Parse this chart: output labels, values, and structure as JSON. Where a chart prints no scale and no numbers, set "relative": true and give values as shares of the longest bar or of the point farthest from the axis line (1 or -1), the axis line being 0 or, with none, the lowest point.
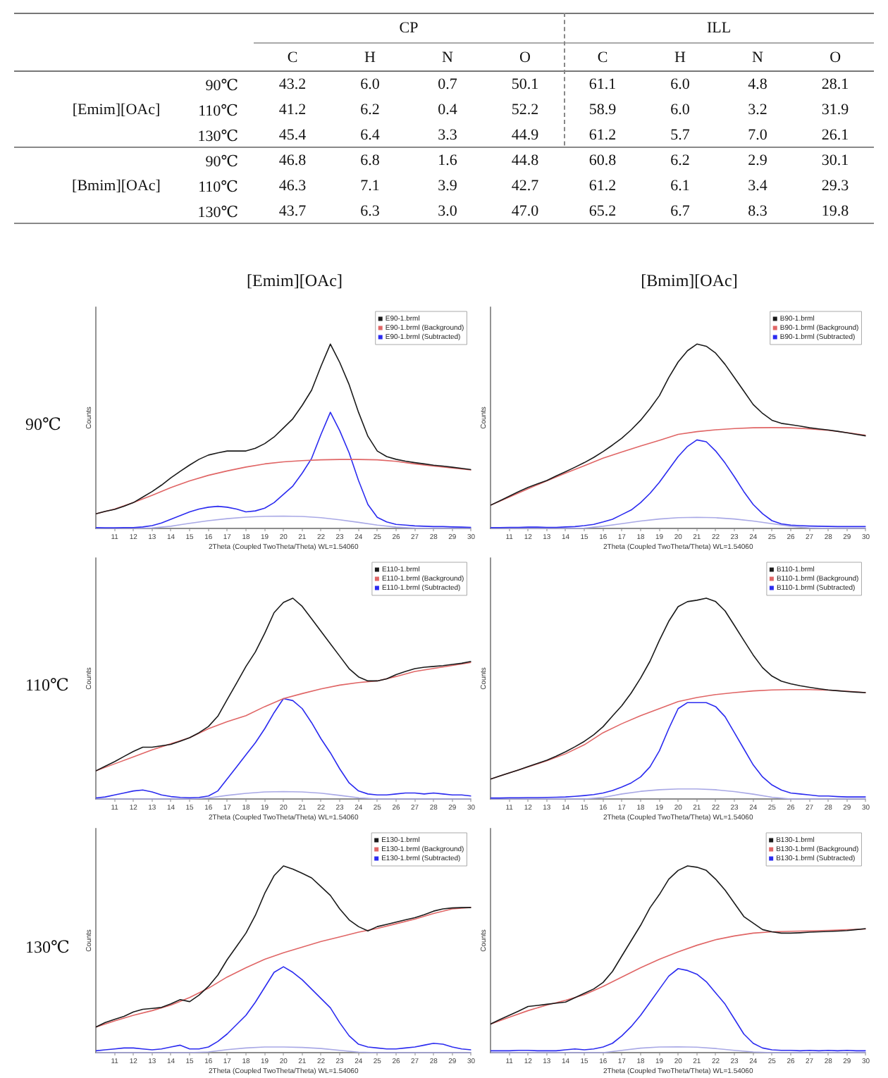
{
  "chart_data": [
    {
      "type": "heatmap",
      "ylabel": "[Emim][OAc]",
      "annotations": [
        "CP",
        "ILL"
      ],
      "categories": [
        "C",
        "H",
        "N",
        "O",
        "C",
        "H",
        "N",
        "O"
      ],
      "y_categories": [
        "90℃",
        "110℃",
        "130℃"
      ],
      "cells": [
        [
          43.2,
          6.0,
          0.7,
          50.1,
          61.1,
          6.0,
          4.8,
          28.1
        ],
        [
          41.2,
          6.2,
          0.4,
          52.2,
          58.9,
          6.0,
          3.2,
          31.9
        ],
        [
          45.4,
          6.4,
          3.3,
          44.9,
          61.2,
          5.7,
          7.0,
          26.1
        ]
      ],
      "cell_labels": [
        [
          "43.2",
          "6.0",
          "0.7",
          "50.1",
          "61.1",
          "6.0",
          "4.8",
          "28.1"
        ],
        [
          "41.2",
          "6.2",
          "0.4",
          "52.2",
          "58.9",
          "6.0",
          "3.2",
          "31.9"
        ],
        [
          "45.4",
          "6.4",
          "3.3",
          "44.9",
          "61.2",
          "5.7",
          "7.0",
          "26.1"
        ]
      ],
      "data_labels": true
    },
    {
      "type": "heatmap",
      "ylabel": "[Bmim][OAc]",
      "categories": [
        null,
        null,
        null,
        null,
        null,
        null,
        null,
        null
      ],
      "y_categories": [
        "90℃",
        "110℃",
        "130℃"
      ],
      "cells": [
        [
          46.8,
          6.8,
          1.6,
          44.8,
          60.8,
          6.2,
          2.9,
          30.1
        ],
        [
          46.3,
          7.1,
          3.9,
          42.7,
          61.2,
          6.1,
          3.4,
          29.3
        ],
        [
          43.7,
          6.3,
          3.0,
          47.0,
          65.2,
          6.7,
          8.3,
          19.8
        ]
      ],
      "cell_labels": [
        [
          "46.8",
          "6.8",
          "1.6",
          "44.8",
          "60.8",
          "6.2",
          "2.9",
          "30.1"
        ],
        [
          "46.3",
          "7.1",
          "3.9",
          "42.7",
          "61.2",
          "6.1",
          "3.4",
          "29.3"
        ],
        [
          "43.7",
          "6.3",
          "3.0",
          "47.0",
          "65.2",
          "6.7",
          "8.3",
          "19.8"
        ]
      ],
      "data_labels": true
    },
    {
      "type": "line",
      "title": "[Emim][OAc]",
      "annotations": [
        "90℃"
      ],
      "xlabel": "2Theta (Coupled TwoTheta/Theta) WL=1.54060",
      "ylabel": "Counts",
      "relative": true,
      "xlim": [
        10,
        30
      ],
      "xticks": [
        11,
        12,
        13,
        14,
        15,
        16,
        17,
        18,
        19,
        20,
        21,
        22,
        23,
        24,
        25,
        26,
        27,
        28,
        29,
        30
      ],
      "legend": "top right",
      "marker": "none",
      "x": [
        10,
        10.5,
        11,
        11.5,
        12,
        12.5,
        13,
        13.5,
        14,
        14.5,
        15,
        15.5,
        16,
        16.5,
        17,
        17.5,
        18,
        18.5,
        19,
        19.5,
        20,
        20.5,
        21,
        21.5,
        22,
        22.5,
        23,
        23.5,
        24,
        24.5,
        25,
        25.5,
        26,
        26.5,
        27,
        27.5,
        28,
        28.5,
        29,
        29.5,
        30
      ],
      "series": [
        {
          "name": "E90-1.brml",
          "color": "#1a1a1a",
          "values": [
            0.079,
            0.093,
            0.103,
            0.12,
            0.14,
            0.17,
            0.2,
            0.235,
            0.275,
            0.31,
            0.344,
            0.375,
            0.398,
            0.41,
            0.42,
            0.42,
            0.42,
            0.435,
            0.46,
            0.496,
            0.545,
            0.595,
            0.668,
            0.75,
            0.88,
            1,
            0.9,
            0.78,
            0.63,
            0.5,
            0.42,
            0.39,
            0.375,
            0.365,
            0.357,
            0.35,
            0.343,
            0.338,
            0.332,
            0.326,
            0.319
          ]
        },
        {
          "name": "E90-1.brml (Background)",
          "color": "#e06666",
          "x": [
            10,
            11,
            12,
            13,
            14,
            15,
            16,
            17,
            18,
            19,
            20,
            21,
            22,
            23,
            24,
            25,
            26,
            27,
            28,
            29,
            30
          ],
          "values": [
            0.079,
            0.105,
            0.14,
            0.18,
            0.222,
            0.258,
            0.288,
            0.312,
            0.333,
            0.35,
            0.361,
            0.368,
            0.372,
            0.374,
            0.374,
            0.372,
            0.364,
            0.35,
            0.338,
            0.328,
            0.317
          ]
        },
        {
          "name": "E90-1.brml (Subtracted)",
          "color": "#2b2bf0",
          "values": [
            0.005,
            0.004,
            0.004,
            0.005,
            0.005,
            0.008,
            0.015,
            0.03,
            0.05,
            0.07,
            0.09,
            0.105,
            0.115,
            0.12,
            0.115,
            0.105,
            0.09,
            0.095,
            0.11,
            0.14,
            0.185,
            0.23,
            0.3,
            0.38,
            0.51,
            0.63,
            0.53,
            0.41,
            0.26,
            0.13,
            0.06,
            0.035,
            0.022,
            0.018,
            0.014,
            0.012,
            0.01,
            0.01,
            0.008,
            0.007,
            0.006
          ]
        },
        {
          "color": "#a9a9e6",
          "x": [
            10,
            11,
            12,
            13,
            14,
            15,
            16,
            17,
            18,
            19,
            20,
            21,
            22,
            23,
            24,
            25,
            26,
            27,
            28,
            29,
            30
          ],
          "values": [
            0,
            0,
            0,
            0.003,
            0.012,
            0.028,
            0.042,
            0.053,
            0.061,
            0.066,
            0.067,
            0.065,
            0.058,
            0.047,
            0.033,
            0.018,
            0.007,
            0.002,
            0,
            0,
            0
          ]
        }
      ]
    },
    {
      "type": "line",
      "title": "[Bmim][OAc]",
      "xlabel": "2Theta (Coupled TwoTheta/Theta) WL=1.54060",
      "ylabel": "Counts",
      "relative": true,
      "xlim": [
        10,
        30
      ],
      "xticks": [
        11,
        12,
        13,
        14,
        15,
        16,
        17,
        18,
        19,
        20,
        21,
        22,
        23,
        24,
        25,
        26,
        27,
        28,
        29,
        30
      ],
      "legend": "top right",
      "marker": "none",
      "x": [
        10,
        10.5,
        11,
        11.5,
        12,
        12.5,
        13,
        13.5,
        14,
        14.5,
        15,
        15.5,
        16,
        16.5,
        17,
        17.5,
        18,
        18.5,
        19,
        19.5,
        20,
        20.5,
        21,
        21.5,
        22,
        22.5,
        23,
        23.5,
        24,
        24.5,
        25,
        25.5,
        26,
        26.5,
        27,
        27.5,
        28,
        28.5,
        29,
        29.5,
        30
      ],
      "series": [
        {
          "name": "B90-1.brml",
          "color": "#1a1a1a",
          "values": [
            0.126,
            0.15,
            0.175,
            0.2,
            0.223,
            0.242,
            0.26,
            0.285,
            0.308,
            0.332,
            0.357,
            0.385,
            0.417,
            0.452,
            0.49,
            0.535,
            0.587,
            0.65,
            0.72,
            0.818,
            0.903,
            0.964,
            1,
            0.988,
            0.951,
            0.89,
            0.818,
            0.745,
            0.672,
            0.624,
            0.587,
            0.57,
            0.563,
            0.555,
            0.546,
            0.54,
            0.534,
            0.527,
            0.519,
            0.51,
            0.502
          ]
        },
        {
          "name": "B90-1.brml (Background)",
          "color": "#e06666",
          "x": [
            10,
            11,
            12,
            13,
            14,
            15,
            16,
            17,
            18,
            19,
            20,
            21,
            22,
            23,
            24,
            25,
            26,
            27,
            28,
            29,
            30
          ],
          "values": [
            0.126,
            0.17,
            0.215,
            0.258,
            0.3,
            0.34,
            0.381,
            0.415,
            0.447,
            0.478,
            0.51,
            0.525,
            0.535,
            0.542,
            0.546,
            0.547,
            0.546,
            0.54,
            0.532,
            0.52,
            0.505
          ]
        },
        {
          "name": "B90-1.brml (Subtracted)",
          "color": "#2b2bf0",
          "values": [
            0.005,
            0.005,
            0.006,
            0.006,
            0.007,
            0.007,
            0.006,
            0.006,
            0.008,
            0.01,
            0.015,
            0.022,
            0.035,
            0.05,
            0.075,
            0.1,
            0.14,
            0.19,
            0.25,
            0.32,
            0.39,
            0.445,
            0.48,
            0.47,
            0.42,
            0.355,
            0.28,
            0.2,
            0.13,
            0.08,
            0.042,
            0.025,
            0.018,
            0.015,
            0.013,
            0.012,
            0.011,
            0.01,
            0.01,
            0.01,
            0.01
          ]
        },
        {
          "color": "#a9a9e6",
          "x": [
            10,
            11,
            12,
            13,
            14,
            15,
            16,
            17,
            18,
            19,
            20,
            21,
            22,
            23,
            24,
            25,
            26,
            27,
            28,
            29,
            30
          ],
          "values": [
            0,
            0,
            0,
            0,
            0,
            0.002,
            0.012,
            0.026,
            0.04,
            0.051,
            0.058,
            0.06,
            0.058,
            0.051,
            0.04,
            0.026,
            0.012,
            0.003,
            0,
            0,
            0
          ]
        }
      ]
    },
    {
      "type": "line",
      "annotations": [
        "110℃"
      ],
      "xlabel": "2Theta (Coupled TwoTheta/Theta) WL=1.54060",
      "ylabel": "Counts",
      "relative": true,
      "xlim": [
        10,
        30
      ],
      "xticks": [
        11,
        12,
        13,
        14,
        15,
        16,
        17,
        18,
        19,
        20,
        21,
        22,
        23,
        24,
        25,
        26,
        27,
        28,
        29,
        30
      ],
      "legend": "top right",
      "marker": "none",
      "x": [
        10,
        10.5,
        11,
        11.5,
        12,
        12.5,
        13,
        13.5,
        14,
        14.5,
        15,
        15.5,
        16,
        16.5,
        17,
        17.5,
        18,
        18.5,
        19,
        19.5,
        20,
        20.5,
        21,
        21.5,
        22,
        22.5,
        23,
        23.5,
        24,
        24.5,
        25,
        25.5,
        26,
        26.5,
        27,
        27.5,
        28,
        28.5,
        29,
        29.5,
        30
      ],
      "series": [
        {
          "name": "E110-1.brml",
          "color": "#1a1a1a",
          "values": [
            0.14,
            0.163,
            0.186,
            0.212,
            0.237,
            0.258,
            0.258,
            0.265,
            0.272,
            0.288,
            0.305,
            0.33,
            0.361,
            0.412,
            0.495,
            0.577,
            0.66,
            0.732,
            0.825,
            0.928,
            0.979,
            1,
            0.959,
            0.897,
            0.835,
            0.773,
            0.711,
            0.649,
            0.608,
            0.588,
            0.588,
            0.598,
            0.619,
            0.635,
            0.649,
            0.656,
            0.66,
            0.664,
            0.67,
            0.676,
            0.685
          ]
        },
        {
          "name": "E110-1.brml (Background)",
          "color": "#e06666",
          "x": [
            10,
            11,
            12,
            13,
            14,
            15,
            16,
            17,
            18,
            19,
            20,
            21,
            22,
            23,
            24,
            25,
            26,
            27,
            28,
            29,
            30
          ],
          "values": [
            0.14,
            0.175,
            0.21,
            0.245,
            0.275,
            0.305,
            0.35,
            0.385,
            0.415,
            0.46,
            0.5,
            0.525,
            0.548,
            0.567,
            0.58,
            0.588,
            0.61,
            0.635,
            0.65,
            0.665,
            0.68
          ]
        },
        {
          "name": "E110-1.brml (Subtracted)",
          "color": "#2b2bf0",
          "values": [
            0.005,
            0.01,
            0.02,
            0.03,
            0.04,
            0.045,
            0.035,
            0.02,
            0.012,
            0.008,
            0.006,
            0.008,
            0.015,
            0.04,
            0.1,
            0.16,
            0.22,
            0.28,
            0.35,
            0.43,
            0.5,
            0.49,
            0.45,
            0.38,
            0.3,
            0.23,
            0.15,
            0.08,
            0.04,
            0.025,
            0.02,
            0.02,
            0.025,
            0.03,
            0.03,
            0.025,
            0.03,
            0.025,
            0.02,
            0.02,
            0.015
          ]
        },
        {
          "color": "#a9a9e6",
          "x": [
            10,
            11,
            12,
            13,
            14,
            15,
            16,
            17,
            18,
            19,
            20,
            21,
            22,
            23,
            24,
            25,
            26,
            27,
            28,
            29,
            30
          ],
          "values": [
            0,
            0,
            0,
            0,
            0,
            0,
            0.005,
            0.018,
            0.028,
            0.035,
            0.037,
            0.035,
            0.029,
            0.018,
            0.006,
            0,
            0,
            0,
            0,
            0,
            0
          ]
        }
      ]
    },
    {
      "type": "line",
      "xlabel": "2Theta (Coupled TwoTheta/Theta) WL=1.54060",
      "ylabel": "Counts",
      "relative": true,
      "xlim": [
        10,
        30
      ],
      "xticks": [
        11,
        12,
        13,
        14,
        15,
        16,
        17,
        18,
        19,
        20,
        21,
        22,
        23,
        24,
        25,
        26,
        27,
        28,
        29,
        30
      ],
      "legend": "top right",
      "marker": "none",
      "x": [
        10,
        10.5,
        11,
        11.5,
        12,
        12.5,
        13,
        13.5,
        14,
        14.5,
        15,
        15.5,
        16,
        16.5,
        17,
        17.5,
        18,
        18.5,
        19,
        19.5,
        20,
        20.5,
        21,
        21.5,
        22,
        22.5,
        23,
        23.5,
        24,
        24.5,
        25,
        25.5,
        26,
        26.5,
        27,
        27.5,
        28,
        28.5,
        29,
        29.5,
        30
      ],
      "series": [
        {
          "name": "B110-1.brml",
          "color": "#1a1a1a",
          "values": [
            0.099,
            0.115,
            0.13,
            0.145,
            0.161,
            0.177,
            0.193,
            0.213,
            0.235,
            0.26,
            0.287,
            0.32,
            0.36,
            0.413,
            0.465,
            0.528,
            0.602,
            0.686,
            0.79,
            0.885,
            0.958,
            0.983,
            0.99,
            1,
            0.983,
            0.937,
            0.864,
            0.79,
            0.717,
            0.654,
            0.612,
            0.587,
            0.574,
            0.564,
            0.556,
            0.549,
            0.543,
            0.539,
            0.535,
            0.532,
            0.53
          ]
        },
        {
          "name": "B110-1.brml (Background)",
          "color": "#e06666",
          "x": [
            10,
            11,
            12,
            13,
            14,
            15,
            16,
            17,
            18,
            19,
            20,
            21,
            22,
            23,
            24,
            25,
            26,
            27,
            28,
            29,
            30
          ],
          "values": [
            0.099,
            0.13,
            0.16,
            0.19,
            0.225,
            0.27,
            0.33,
            0.375,
            0.415,
            0.45,
            0.485,
            0.505,
            0.52,
            0.53,
            0.538,
            0.543,
            0.545,
            0.545,
            0.542,
            0.537,
            0.53
          ]
        },
        {
          "name": "B110-1.brml (Subtracted)",
          "color": "#2b2bf0",
          "values": [
            0.005,
            0.005,
            0.006,
            0.006,
            0.007,
            0.007,
            0.008,
            0.009,
            0.01,
            0.013,
            0.017,
            0.022,
            0.03,
            0.042,
            0.06,
            0.08,
            0.11,
            0.16,
            0.24,
            0.35,
            0.45,
            0.48,
            0.48,
            0.48,
            0.46,
            0.41,
            0.33,
            0.25,
            0.17,
            0.11,
            0.07,
            0.045,
            0.03,
            0.025,
            0.02,
            0.015,
            0.015,
            0.012,
            0.01,
            0.01,
            0.01
          ]
        },
        {
          "color": "#a9a9e6",
          "x": [
            10,
            11,
            12,
            13,
            14,
            15,
            16,
            17,
            18,
            19,
            20,
            21,
            22,
            23,
            24,
            25,
            26,
            27,
            28,
            29,
            30
          ],
          "values": [
            0,
            0,
            0,
            0,
            0,
            0,
            0.008,
            0.025,
            0.038,
            0.046,
            0.05,
            0.05,
            0.046,
            0.037,
            0.024,
            0.009,
            0,
            0,
            0,
            0,
            0
          ]
        }
      ]
    },
    {
      "type": "line",
      "annotations": [
        "130℃"
      ],
      "xlabel": "2Theta (Coupled TwoTheta/Theta) WL=1.54060",
      "ylabel": "Counts",
      "relative": true,
      "xlim": [
        10,
        30
      ],
      "xticks": [
        11,
        12,
        13,
        14,
        15,
        16,
        17,
        18,
        19,
        20,
        21,
        22,
        23,
        24,
        25,
        26,
        27,
        28,
        29,
        30
      ],
      "legend": "top right",
      "marker": "none",
      "x": [
        10,
        10.5,
        11,
        11.5,
        12,
        12.5,
        13,
        13.5,
        14,
        14.5,
        15,
        15.5,
        16,
        16.5,
        17,
        17.5,
        18,
        18.5,
        19,
        19.5,
        20,
        20.5,
        21,
        21.5,
        22,
        22.5,
        23,
        23.5,
        24,
        24.5,
        25,
        25.5,
        26,
        26.5,
        27,
        27.5,
        28,
        28.5,
        29,
        29.5,
        30
      ],
      "series": [
        {
          "name": "E130-1.brml",
          "color": "#1a1a1a",
          "values": [
            0.137,
            0.161,
            0.178,
            0.194,
            0.218,
            0.232,
            0.237,
            0.242,
            0.261,
            0.284,
            0.273,
            0.308,
            0.355,
            0.415,
            0.498,
            0.569,
            0.64,
            0.735,
            0.853,
            0.948,
            1,
            0.983,
            0.96,
            0.936,
            0.889,
            0.842,
            0.77,
            0.711,
            0.675,
            0.652,
            0.675,
            0.687,
            0.699,
            0.711,
            0.723,
            0.739,
            0.758,
            0.77,
            0.775,
            0.777,
            0.777
          ]
        },
        {
          "name": "E130-1.brml (Background)",
          "color": "#e06666",
          "x": [
            10,
            11,
            12,
            13,
            14,
            15,
            16,
            17,
            18,
            19,
            20,
            21,
            22,
            23,
            24,
            25,
            26,
            27,
            28,
            29,
            30
          ],
          "values": [
            0.137,
            0.17,
            0.2,
            0.225,
            0.255,
            0.295,
            0.345,
            0.405,
            0.455,
            0.5,
            0.535,
            0.565,
            0.595,
            0.62,
            0.645,
            0.665,
            0.69,
            0.715,
            0.745,
            0.77,
            0.778
          ]
        },
        {
          "name": "E130-1.brml (Subtracted)",
          "color": "#2b2bf0",
          "values": [
            0.01,
            0.015,
            0.02,
            0.025,
            0.025,
            0.02,
            0.015,
            0.02,
            0.03,
            0.04,
            0.02,
            0.02,
            0.03,
            0.06,
            0.1,
            0.15,
            0.2,
            0.27,
            0.35,
            0.43,
            0.46,
            0.43,
            0.39,
            0.34,
            0.29,
            0.24,
            0.16,
            0.09,
            0.045,
            0.03,
            0.025,
            0.02,
            0.02,
            0.025,
            0.03,
            0.04,
            0.05,
            0.045,
            0.03,
            0.02,
            0.015
          ]
        },
        {
          "color": "#a9a9e6",
          "x": [
            10,
            11,
            12,
            13,
            14,
            15,
            16,
            17,
            18,
            19,
            20,
            21,
            22,
            23,
            24,
            25,
            26,
            27,
            28,
            29,
            30
          ],
          "values": [
            0,
            0,
            0,
            0,
            0,
            0,
            0.004,
            0.016,
            0.025,
            0.03,
            0.03,
            0.028,
            0.022,
            0.012,
            0.003,
            0,
            0,
            0,
            0,
            0,
            0
          ]
        }
      ]
    },
    {
      "type": "line",
      "xlabel": "2Theta (Coupled TwoTheta/Theta) WL=1.54060",
      "ylabel": "Counts",
      "relative": true,
      "xlim": [
        10,
        30
      ],
      "xticks": [
        11,
        12,
        13,
        14,
        15,
        16,
        17,
        18,
        19,
        20,
        21,
        22,
        23,
        24,
        25,
        26,
        27,
        28,
        29,
        30
      ],
      "legend": "top right",
      "marker": "none",
      "x": [
        10,
        10.5,
        11,
        11.5,
        12,
        12.5,
        13,
        13.5,
        14,
        14.5,
        15,
        15.5,
        16,
        16.5,
        17,
        17.5,
        18,
        18.5,
        19,
        19.5,
        20,
        20.5,
        21,
        21.5,
        22,
        22.5,
        23,
        23.5,
        24,
        24.5,
        25,
        25.5,
        26,
        26.5,
        27,
        27.5,
        28,
        28.5,
        29,
        29.5,
        30
      ],
      "series": [
        {
          "name": "B130-1.brml",
          "color": "#1a1a1a",
          "values": [
            0.153,
            0.177,
            0.2,
            0.223,
            0.247,
            0.253,
            0.259,
            0.265,
            0.271,
            0.294,
            0.318,
            0.341,
            0.376,
            0.435,
            0.518,
            0.6,
            0.682,
            0.776,
            0.847,
            0.929,
            0.976,
            1,
            0.993,
            0.976,
            0.929,
            0.871,
            0.8,
            0.729,
            0.694,
            0.659,
            0.647,
            0.64,
            0.64,
            0.642,
            0.645,
            0.647,
            0.649,
            0.651,
            0.654,
            0.659,
            0.664
          ]
        },
        {
          "name": "B130-1.brml (Background)",
          "color": "#e06666",
          "x": [
            10,
            11,
            12,
            13,
            14,
            15,
            16,
            17,
            18,
            19,
            20,
            21,
            22,
            23,
            24,
            25,
            26,
            27,
            28,
            29,
            30
          ],
          "values": [
            0.153,
            0.19,
            0.225,
            0.255,
            0.28,
            0.31,
            0.355,
            0.405,
            0.455,
            0.5,
            0.54,
            0.575,
            0.605,
            0.625,
            0.64,
            0.647,
            0.65,
            0.652,
            0.655,
            0.658,
            0.662
          ]
        },
        {
          "name": "B130-1.brml (Subtracted)",
          "color": "#2b2bf0",
          "values": [
            0.01,
            0.01,
            0.01,
            0.012,
            0.012,
            0.01,
            0.01,
            0.01,
            0.015,
            0.02,
            0.015,
            0.02,
            0.03,
            0.05,
            0.09,
            0.14,
            0.2,
            0.27,
            0.34,
            0.41,
            0.45,
            0.44,
            0.42,
            0.38,
            0.32,
            0.26,
            0.18,
            0.1,
            0.05,
            0.025,
            0.015,
            0.012,
            0.012,
            0.01,
            0.012,
            0.01,
            0.012,
            0.01,
            0.012,
            0.01,
            0.01
          ]
        },
        {
          "color": "#a9a9e6",
          "x": [
            10,
            11,
            12,
            13,
            14,
            15,
            16,
            17,
            18,
            19,
            20,
            21,
            22,
            23,
            24,
            25,
            26,
            27,
            28,
            29,
            30
          ],
          "values": [
            0,
            0,
            0,
            0,
            0,
            0,
            0,
            0.012,
            0.024,
            0.03,
            0.031,
            0.029,
            0.022,
            0.012,
            0.004,
            0,
            0,
            0,
            0,
            0,
            0
          ]
        }
      ]
    }
  ]
}
